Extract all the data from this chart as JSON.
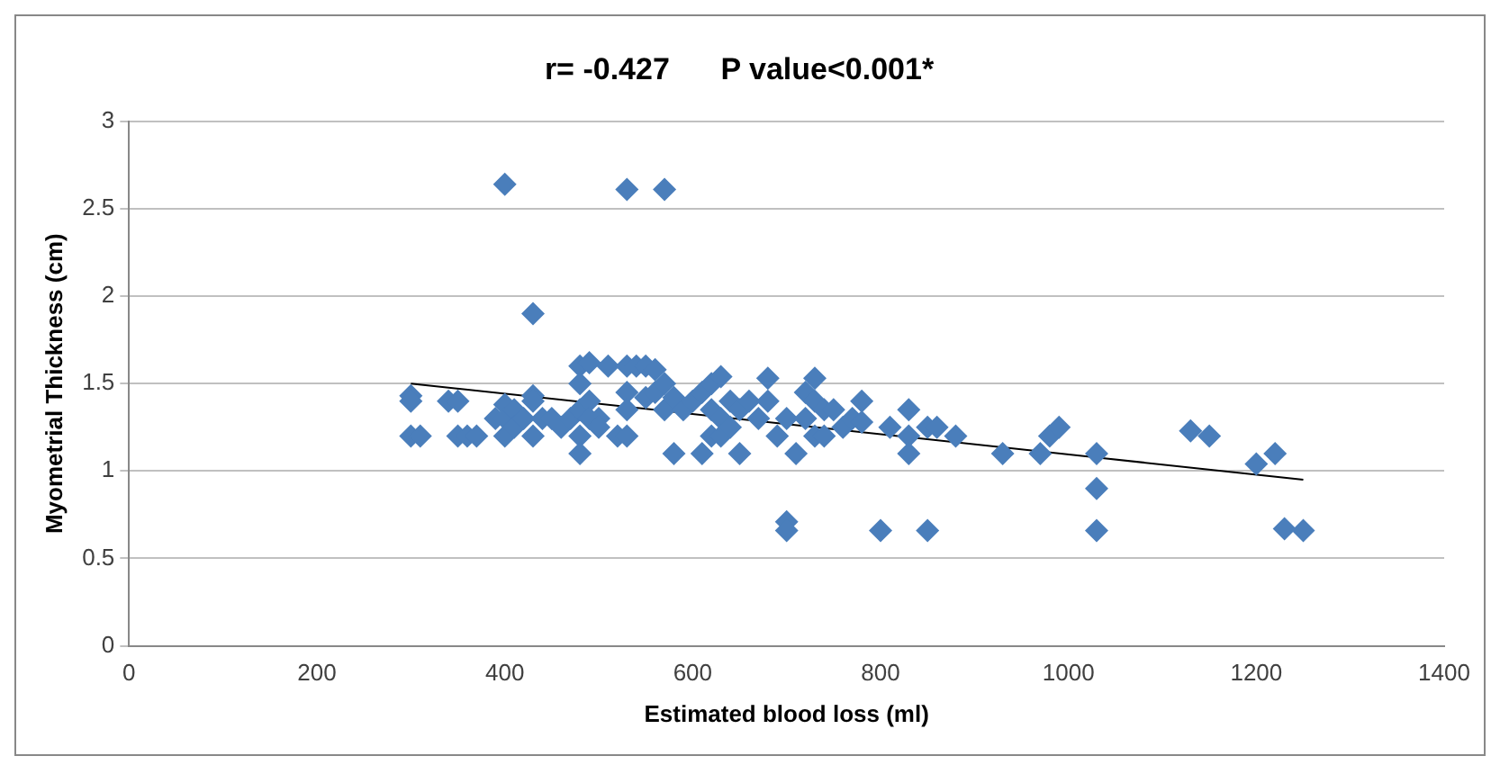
{
  "chart_data": {
    "type": "scatter",
    "title": "r= -0.427      P value<0.001*",
    "xlabel": "Estimated blood loss (ml)",
    "ylabel": "Myometrial Thickness (cm)",
    "xlim": [
      0,
      1400
    ],
    "xticks": [
      0,
      200,
      400,
      600,
      800,
      1000,
      1200,
      1400
    ],
    "ylim": [
      0,
      3
    ],
    "yticks": [
      0,
      0.5,
      1,
      1.5,
      2,
      2.5,
      3
    ],
    "grid": "y",
    "legend": false,
    "marker": "diamond",
    "series": [
      {
        "color": "#4a7ebb",
        "x": [
          300,
          300,
          300,
          310,
          340,
          350,
          350,
          360,
          370,
          390,
          400,
          400,
          400,
          400,
          410,
          410,
          420,
          430,
          430,
          430,
          430,
          440,
          450,
          460,
          470,
          480,
          480,
          480,
          480,
          480,
          490,
          490,
          490,
          500,
          500,
          510,
          520,
          530,
          530,
          530,
          530,
          530,
          540,
          550,
          550,
          560,
          560,
          570,
          570,
          570,
          580,
          580,
          590,
          600,
          610,
          610,
          620,
          620,
          620,
          630,
          630,
          630,
          640,
          640,
          650,
          650,
          660,
          670,
          680,
          680,
          690,
          700,
          700,
          700,
          710,
          720,
          720,
          730,
          730,
          730,
          740,
          740,
          750,
          760,
          770,
          780,
          780,
          800,
          810,
          830,
          830,
          830,
          850,
          850,
          860,
          880,
          930,
          970,
          980,
          990,
          1030,
          1030,
          1030,
          1130,
          1150,
          1200,
          1220,
          1230,
          1250
        ],
        "values": [
          1.43,
          1.4,
          1.2,
          1.2,
          1.4,
          1.4,
          1.2,
          1.2,
          1.2,
          1.3,
          2.64,
          1.38,
          1.3,
          1.2,
          1.35,
          1.25,
          1.3,
          1.9,
          1.43,
          1.4,
          1.2,
          1.3,
          1.3,
          1.25,
          1.3,
          1.6,
          1.5,
          1.35,
          1.2,
          1.1,
          1.62,
          1.4,
          1.3,
          1.3,
          1.25,
          1.6,
          1.2,
          2.61,
          1.6,
          1.45,
          1.35,
          1.2,
          1.6,
          1.6,
          1.42,
          1.58,
          1.45,
          2.61,
          1.5,
          1.35,
          1.1,
          1.42,
          1.35,
          1.4,
          1.45,
          1.1,
          1.5,
          1.35,
          1.2,
          1.54,
          1.3,
          1.2,
          1.25,
          1.4,
          1.1,
          1.35,
          1.4,
          1.3,
          1.53,
          1.4,
          1.2,
          0.71,
          0.66,
          1.3,
          1.1,
          1.45,
          1.3,
          1.53,
          1.4,
          1.2,
          1.35,
          1.2,
          1.35,
          1.25,
          1.3,
          1.4,
          1.28,
          0.66,
          1.25,
          1.35,
          1.2,
          1.1,
          0.66,
          1.25,
          1.25,
          1.2,
          1.1,
          1.1,
          1.2,
          1.25,
          1.1,
          0.9,
          0.66,
          1.23,
          1.2,
          1.04,
          1.1,
          0.67,
          0.66
        ]
      },
      {
        "type": "line",
        "color": "#000000",
        "marker": "none",
        "x": [
          300,
          1250
        ],
        "values": [
          1.5,
          0.95
        ]
      }
    ]
  }
}
